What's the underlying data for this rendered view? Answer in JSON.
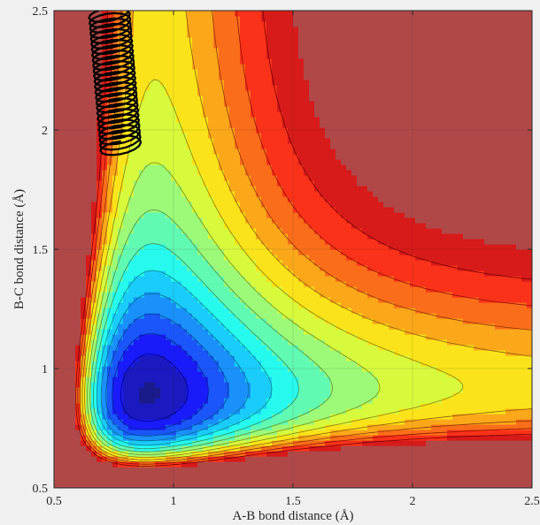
{
  "chart_data": {
    "type": "heatmap",
    "subtype": "filled-contour",
    "colormap": "jet",
    "title": "",
    "xlabel": "A-B bond distance (Å)",
    "ylabel": "B-C bond distance (Å)",
    "xlim": [
      0.5,
      2.5
    ],
    "ylim": [
      0.5,
      2.5
    ],
    "xticks": [
      0.5,
      1,
      1.5,
      2,
      2.5
    ],
    "yticks": [
      0.5,
      1,
      1.5,
      2,
      2.5
    ],
    "xtick_labels": [
      "0.5",
      "1",
      "1.5",
      "2",
      "2.5"
    ],
    "ytick_labels": [
      "0.5",
      "1",
      "1.5",
      "2",
      "2.5"
    ],
    "grid": true,
    "saturated_color": "#b04848",
    "minimum_valley": {
      "r_ab_asymptote": 2.5,
      "r_bc_equilibrium": 0.93
    },
    "surface_model": "symmetric Morse-type A-B-C potential energy surface",
    "energy_levels": 14,
    "trajectory": {
      "color": "#000000",
      "r_ab_range": [
        0.67,
        0.84
      ],
      "r_bc_range": [
        1.92,
        2.5
      ]
    }
  }
}
